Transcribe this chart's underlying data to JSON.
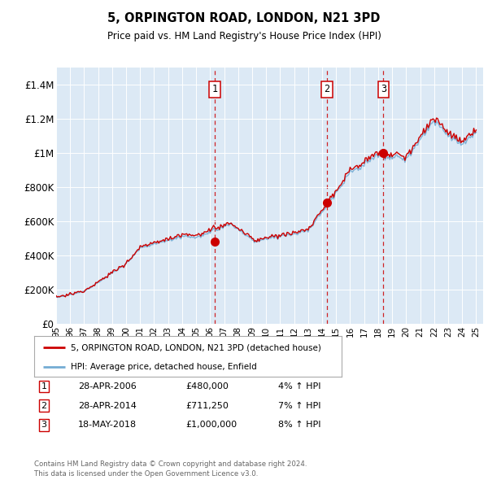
{
  "title": "5, ORPINGTON ROAD, LONDON, N21 3PD",
  "subtitle": "Price paid vs. HM Land Registry's House Price Index (HPI)",
  "background_color": "#dce9f5",
  "plot_bg_color": "#dce9f5",
  "ylim": [
    0,
    1500000
  ],
  "yticks": [
    0,
    200000,
    400000,
    600000,
    800000,
    1000000,
    1200000,
    1400000
  ],
  "ytick_labels": [
    "£0",
    "£200K",
    "£400K",
    "£600K",
    "£800K",
    "£1M",
    "£1.2M",
    "£1.4M"
  ],
  "sale_dates_numeric": [
    2006.33,
    2014.33,
    2018.38
  ],
  "sale_prices": [
    480000,
    711250,
    1000000
  ],
  "sale_labels": [
    "1",
    "2",
    "3"
  ],
  "sale_annotations": [
    {
      "label": "1",
      "date": "28-APR-2006",
      "price": "£480,000",
      "hpi": "4% ↑ HPI"
    },
    {
      "label": "2",
      "date": "28-APR-2014",
      "price": "£711,250",
      "hpi": "7% ↑ HPI"
    },
    {
      "label": "3",
      "date": "18-MAY-2018",
      "price": "£1,000,000",
      "hpi": "8% ↑ HPI"
    }
  ],
  "legend_house": "5, ORPINGTON ROAD, LONDON, N21 3PD (detached house)",
  "legend_hpi": "HPI: Average price, detached house, Enfield",
  "footer": "Contains HM Land Registry data © Crown copyright and database right 2024.\nThis data is licensed under the Open Government Licence v3.0.",
  "hpi_color": "#74acd4",
  "house_color": "#cc0000",
  "vline_color": "#cc0000",
  "xlim_start": 1995,
  "xlim_end": 2025.5,
  "xtick_years": [
    1995,
    1996,
    1997,
    1998,
    1999,
    2000,
    2001,
    2002,
    2003,
    2004,
    2005,
    2006,
    2007,
    2008,
    2009,
    2010,
    2011,
    2012,
    2013,
    2014,
    2015,
    2016,
    2017,
    2018,
    2019,
    2020,
    2021,
    2022,
    2023,
    2024,
    2025
  ]
}
